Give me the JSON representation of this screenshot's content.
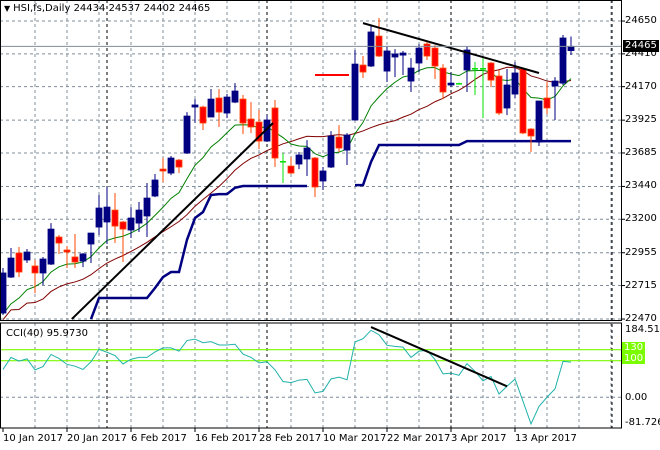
{
  "header": {
    "symbol": "HSI,fs,Daily",
    "open": "24434",
    "high": "24537",
    "low": "24402",
    "close": "24465"
  },
  "cci_label": {
    "name": "CCI(40)",
    "value": "95.9730"
  },
  "price_axis": {
    "ticks": [
      "24650",
      "24410",
      "24170",
      "23925",
      "23685",
      "23440",
      "23200",
      "22955",
      "22715",
      "22470"
    ],
    "current_price": "24465"
  },
  "cci_axis": {
    "top": "184.5133",
    "level_high": "130",
    "level_low": "100",
    "zero": "0.00",
    "bottom": "-81.7267"
  },
  "colors": {
    "bull": "#000080",
    "bear": "#FF0000",
    "bear_wick": "#FF4500",
    "doji": "#00E000",
    "ema": "#008000",
    "sma": "#800000",
    "support": "#000080",
    "cci": "#20B2AA",
    "cci_level": "#7CFC00",
    "grid": "#7F8C99"
  },
  "chart_data": [
    {
      "type": "candlestick",
      "title": "HSI,fs,Daily",
      "ylim": [
        22463,
        24804
      ],
      "yticks": [
        24650,
        24410,
        24170,
        23925,
        23685,
        23440,
        23200,
        22955,
        22715,
        22470
      ],
      "x_labels": [
        {
          "bar": 0,
          "label": "10 Jan 2017"
        },
        {
          "bar": 8,
          "label": "20 Jan 2017"
        },
        {
          "bar": 16,
          "label": "6 Feb 2017"
        },
        {
          "bar": 24,
          "label": "16 Feb 2017"
        },
        {
          "bar": 32,
          "label": "28 Feb 2017"
        },
        {
          "bar": 40,
          "label": "10 Mar 2017"
        },
        {
          "bar": 48,
          "label": "22 Mar 2017"
        },
        {
          "bar": 56,
          "label": "3 Apr 2017"
        },
        {
          "bar": 64,
          "label": "13 Apr 2017"
        }
      ],
      "month_separators": [
        13,
        33,
        56,
        76
      ],
      "ohlc": [
        [
          22514,
          22843,
          22500,
          22807
        ],
        [
          22777,
          22990,
          22770,
          22916
        ],
        [
          22953,
          22997,
          22777,
          22814
        ],
        [
          22902,
          22982,
          22880,
          22960
        ],
        [
          22858,
          22902,
          22660,
          22807
        ],
        [
          22807,
          22924,
          22719,
          22909
        ],
        [
          22872,
          23172,
          22865,
          23128
        ],
        [
          23070,
          23085,
          22946,
          23026
        ],
        [
          22975,
          23004,
          22843,
          22960
        ],
        [
          22924,
          23092,
          22843,
          22887
        ],
        [
          22894,
          22953,
          22850,
          22946
        ],
        [
          23019,
          23099,
          22880,
          23099
        ],
        [
          23143,
          23377,
          23085,
          23282
        ],
        [
          23180,
          23436,
          23019,
          23289
        ],
        [
          23267,
          23392,
          23026,
          23150
        ],
        [
          23180,
          23187,
          22887,
          23128
        ],
        [
          23121,
          23289,
          23063,
          23209
        ],
        [
          23172,
          23326,
          23107,
          23267
        ],
        [
          23224,
          23465,
          23070,
          23355
        ],
        [
          23370,
          23531,
          23362,
          23487
        ],
        [
          23567,
          23648,
          23472,
          23553
        ],
        [
          23538,
          23663,
          23523,
          23648
        ],
        [
          23633,
          23641,
          23538,
          23582
        ],
        [
          23684,
          23984,
          23677,
          23955
        ],
        [
          24021,
          24079,
          23904,
          24036
        ],
        [
          24021,
          24030,
          23853,
          23904
        ],
        [
          23948,
          24153,
          23948,
          24079
        ],
        [
          24087,
          24153,
          23875,
          23984
        ],
        [
          23977,
          24116,
          23940,
          24094
        ],
        [
          24057,
          24196,
          24050,
          24138
        ],
        [
          24079,
          24109,
          23823,
          23904
        ],
        [
          23933,
          24057,
          23831,
          23875
        ],
        [
          23911,
          23999,
          23714,
          23772
        ],
        [
          23772,
          23962,
          23765,
          23926
        ],
        [
          24014,
          24072,
          23582,
          23648
        ],
        [
          23626,
          23684,
          23465,
          23626
        ],
        [
          23589,
          23655,
          23531,
          23538
        ],
        [
          23604,
          23692,
          23567,
          23670
        ],
        [
          23641,
          23779,
          23516,
          23721
        ],
        [
          23648,
          23655,
          23363,
          23436
        ],
        [
          23480,
          23582,
          23414,
          23553
        ],
        [
          23582,
          23845,
          23575,
          23809
        ],
        [
          23801,
          23889,
          23692,
          23721
        ],
        [
          23706,
          23830,
          23597,
          23816
        ],
        [
          23926,
          24438,
          23926,
          24335
        ],
        [
          24328,
          24394,
          24233,
          24277
        ],
        [
          24321,
          24621,
          24314,
          24570
        ],
        [
          24540,
          24672,
          24387,
          24394
        ],
        [
          24284,
          24467,
          24204,
          24431
        ],
        [
          24387,
          24445,
          24240,
          24409
        ],
        [
          24401,
          24431,
          24255,
          24416
        ],
        [
          24211,
          24379,
          24131,
          24306
        ],
        [
          24343,
          24482,
          24277,
          24452
        ],
        [
          24482,
          24496,
          24365,
          24394
        ],
        [
          24452,
          24474,
          24226,
          24321
        ],
        [
          24306,
          24335,
          24079,
          24131
        ],
        [
          24182,
          24270,
          24167,
          24196
        ],
        [
          24196,
          24200,
          24190,
          24196
        ],
        [
          24292,
          24467,
          24131,
          24438
        ],
        [
          24306,
          24350,
          24109,
          24299
        ],
        [
          24306,
          24379,
          23940,
          24299
        ],
        [
          24343,
          24350,
          24167,
          24218
        ],
        [
          24248,
          24292,
          23962,
          23977
        ],
        [
          24014,
          24299,
          23962,
          24182
        ],
        [
          24116,
          24350,
          24087,
          24270
        ],
        [
          24299,
          24306,
          23823,
          23831
        ],
        [
          23860,
          23867,
          23692,
          23809
        ],
        [
          23765,
          24065,
          23736,
          24065
        ],
        [
          24087,
          24204,
          23970,
          24014
        ],
        [
          24175,
          24240,
          23926,
          24211
        ],
        [
          24196,
          24548,
          24182,
          24526
        ],
        [
          24434,
          24537,
          24402,
          24465
        ]
      ],
      "support_line": [
        null,
        null,
        null,
        null,
        null,
        null,
        null,
        null,
        null,
        null,
        null,
        22470,
        22624,
        22624,
        22624,
        22624,
        22624,
        22624,
        22624,
        22697,
        22777,
        22814,
        22814,
        23050,
        23209,
        23253,
        23377,
        23384,
        23384,
        23430,
        23443,
        23443,
        23443,
        23443,
        23443,
        23443,
        23443,
        23443,
        23443,
        null,
        null,
        null,
        null,
        null,
        23450,
        23450,
        23619,
        23743,
        23743,
        23743,
        23743,
        23743,
        23743,
        23743,
        23743,
        23743,
        23743,
        23743,
        23772,
        23772,
        23772,
        23772,
        23772,
        23772,
        23772,
        23772,
        23772,
        23772,
        23772,
        23772,
        23772,
        23772
      ],
      "ema_period": 10,
      "sma_period": 20,
      "trendlines": [
        {
          "from": [
            8.6,
            22470
          ],
          "to": [
            33.75,
            23904
          ]
        },
        {
          "from": [
            45,
            24635
          ],
          "to": [
            67,
            24270
          ]
        }
      ],
      "level_segment": {
        "from_bar": 39,
        "to_bar": 43,
        "price": 24255
      }
    },
    {
      "type": "line",
      "title": "CCI(40) 95.9730",
      "ylim": [
        -84,
        203
      ],
      "levels": [
        130,
        100,
        0
      ],
      "values": [
        76,
        109,
        99,
        105,
        75,
        84,
        117,
        106,
        90,
        85,
        76,
        97,
        131,
        123,
        114,
        91,
        104,
        109,
        109,
        124,
        135,
        135,
        126,
        155,
        159,
        149,
        152,
        143,
        143,
        145,
        118,
        109,
        94,
        97,
        75,
        43,
        40,
        47,
        49,
        12,
        16,
        50,
        55,
        48,
        151,
        160,
        183,
        171,
        142,
        139,
        137,
        109,
        126,
        128,
        103,
        64,
        66,
        60,
        92,
        71,
        45,
        57,
        9,
        30,
        50,
        -11,
        -73,
        -25,
        0,
        23,
        98,
        96
      ],
      "trendline": {
        "from": [
          46,
          192
        ],
        "to": [
          63,
          30
        ]
      }
    }
  ]
}
